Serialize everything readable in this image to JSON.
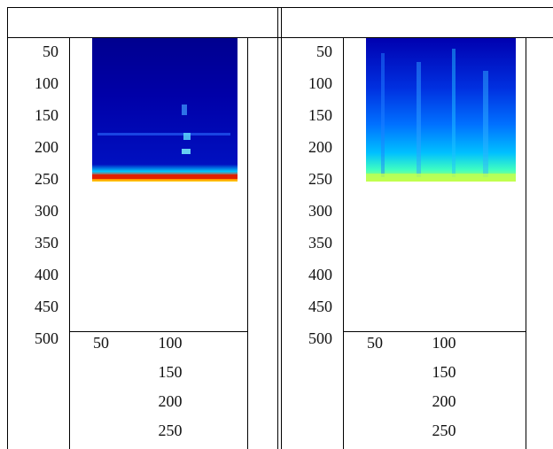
{
  "panels": [
    {
      "y_labels": [
        "50",
        "100",
        "150",
        "200",
        "250",
        "300",
        "350",
        "400",
        "450",
        "500"
      ],
      "x_labels": [
        "50",
        "100",
        "150",
        "200",
        "250"
      ]
    },
    {
      "y_labels": [
        "50",
        "100",
        "150",
        "200",
        "250",
        "300",
        "350",
        "400",
        "450",
        "500"
      ],
      "x_labels": [
        "50",
        "100",
        "150",
        "200",
        "250"
      ]
    }
  ]
}
